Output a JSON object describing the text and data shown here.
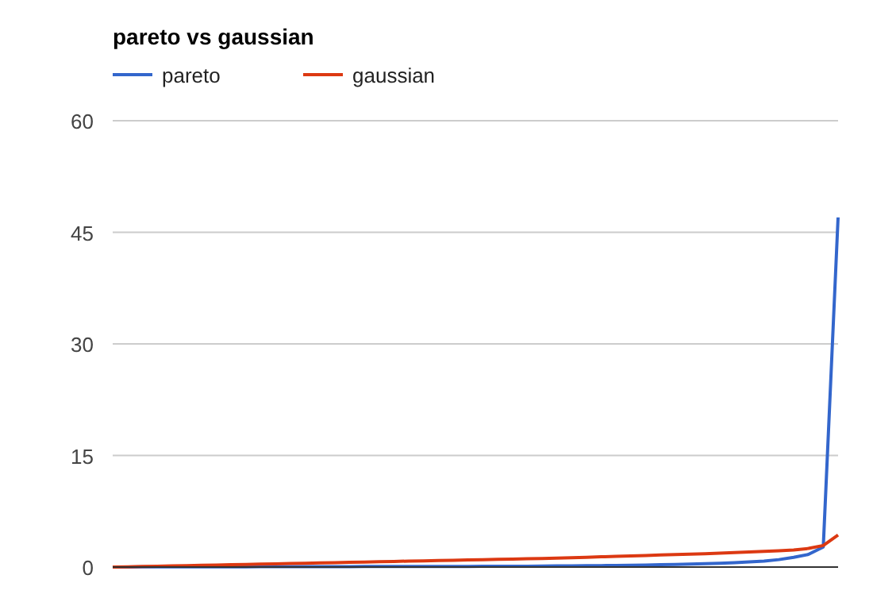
{
  "chart_data": {
    "type": "line",
    "title": "pareto vs gaussian",
    "categories": [
      null,
      null,
      null,
      null,
      null,
      null,
      null,
      null,
      null,
      null,
      null,
      null,
      null,
      null,
      null,
      null,
      null,
      null,
      null,
      null,
      null,
      null,
      null,
      null,
      null,
      null,
      null,
      null,
      null,
      null,
      null,
      null,
      null,
      null,
      null,
      null,
      null,
      null,
      null,
      null,
      null,
      null,
      null,
      null,
      null,
      null,
      null,
      null,
      null,
      null
    ],
    "series": [
      {
        "name": "pareto",
        "color": "#3366cc",
        "values": [
          0,
          0.01,
          0.02,
          0.02,
          0.03,
          0.03,
          0.03,
          0.04,
          0.04,
          0.04,
          0.05,
          0.05,
          0.05,
          0.05,
          0.06,
          0.06,
          0.06,
          0.07,
          0.07,
          0.07,
          0.08,
          0.08,
          0.08,
          0.09,
          0.09,
          0.1,
          0.1,
          0.11,
          0.12,
          0.13,
          0.15,
          0.16,
          0.18,
          0.2,
          0.22,
          0.25,
          0.28,
          0.31,
          0.35,
          0.4,
          0.45,
          0.52,
          0.6,
          0.7,
          0.8,
          1.0,
          1.3,
          1.7,
          2.7,
          47
        ]
      },
      {
        "name": "gaussian",
        "color": "#dc3912",
        "values": [
          0,
          0.04,
          0.08,
          0.12,
          0.16,
          0.2,
          0.24,
          0.28,
          0.32,
          0.36,
          0.4,
          0.44,
          0.48,
          0.52,
          0.56,
          0.6,
          0.64,
          0.68,
          0.72,
          0.76,
          0.8,
          0.84,
          0.88,
          0.92,
          0.96,
          1.0,
          1.04,
          1.08,
          1.12,
          1.16,
          1.2,
          1.26,
          1.32,
          1.38,
          1.44,
          1.5,
          1.56,
          1.62,
          1.68,
          1.74,
          1.8,
          1.87,
          1.95,
          2.02,
          2.1,
          2.2,
          2.3,
          2.5,
          2.9,
          4.3
        ]
      }
    ],
    "ylim": [
      0,
      60
    ],
    "yticks": [
      0,
      15,
      30,
      45,
      60
    ],
    "grid": "y",
    "legend": "top left",
    "tick_labels": "y"
  }
}
